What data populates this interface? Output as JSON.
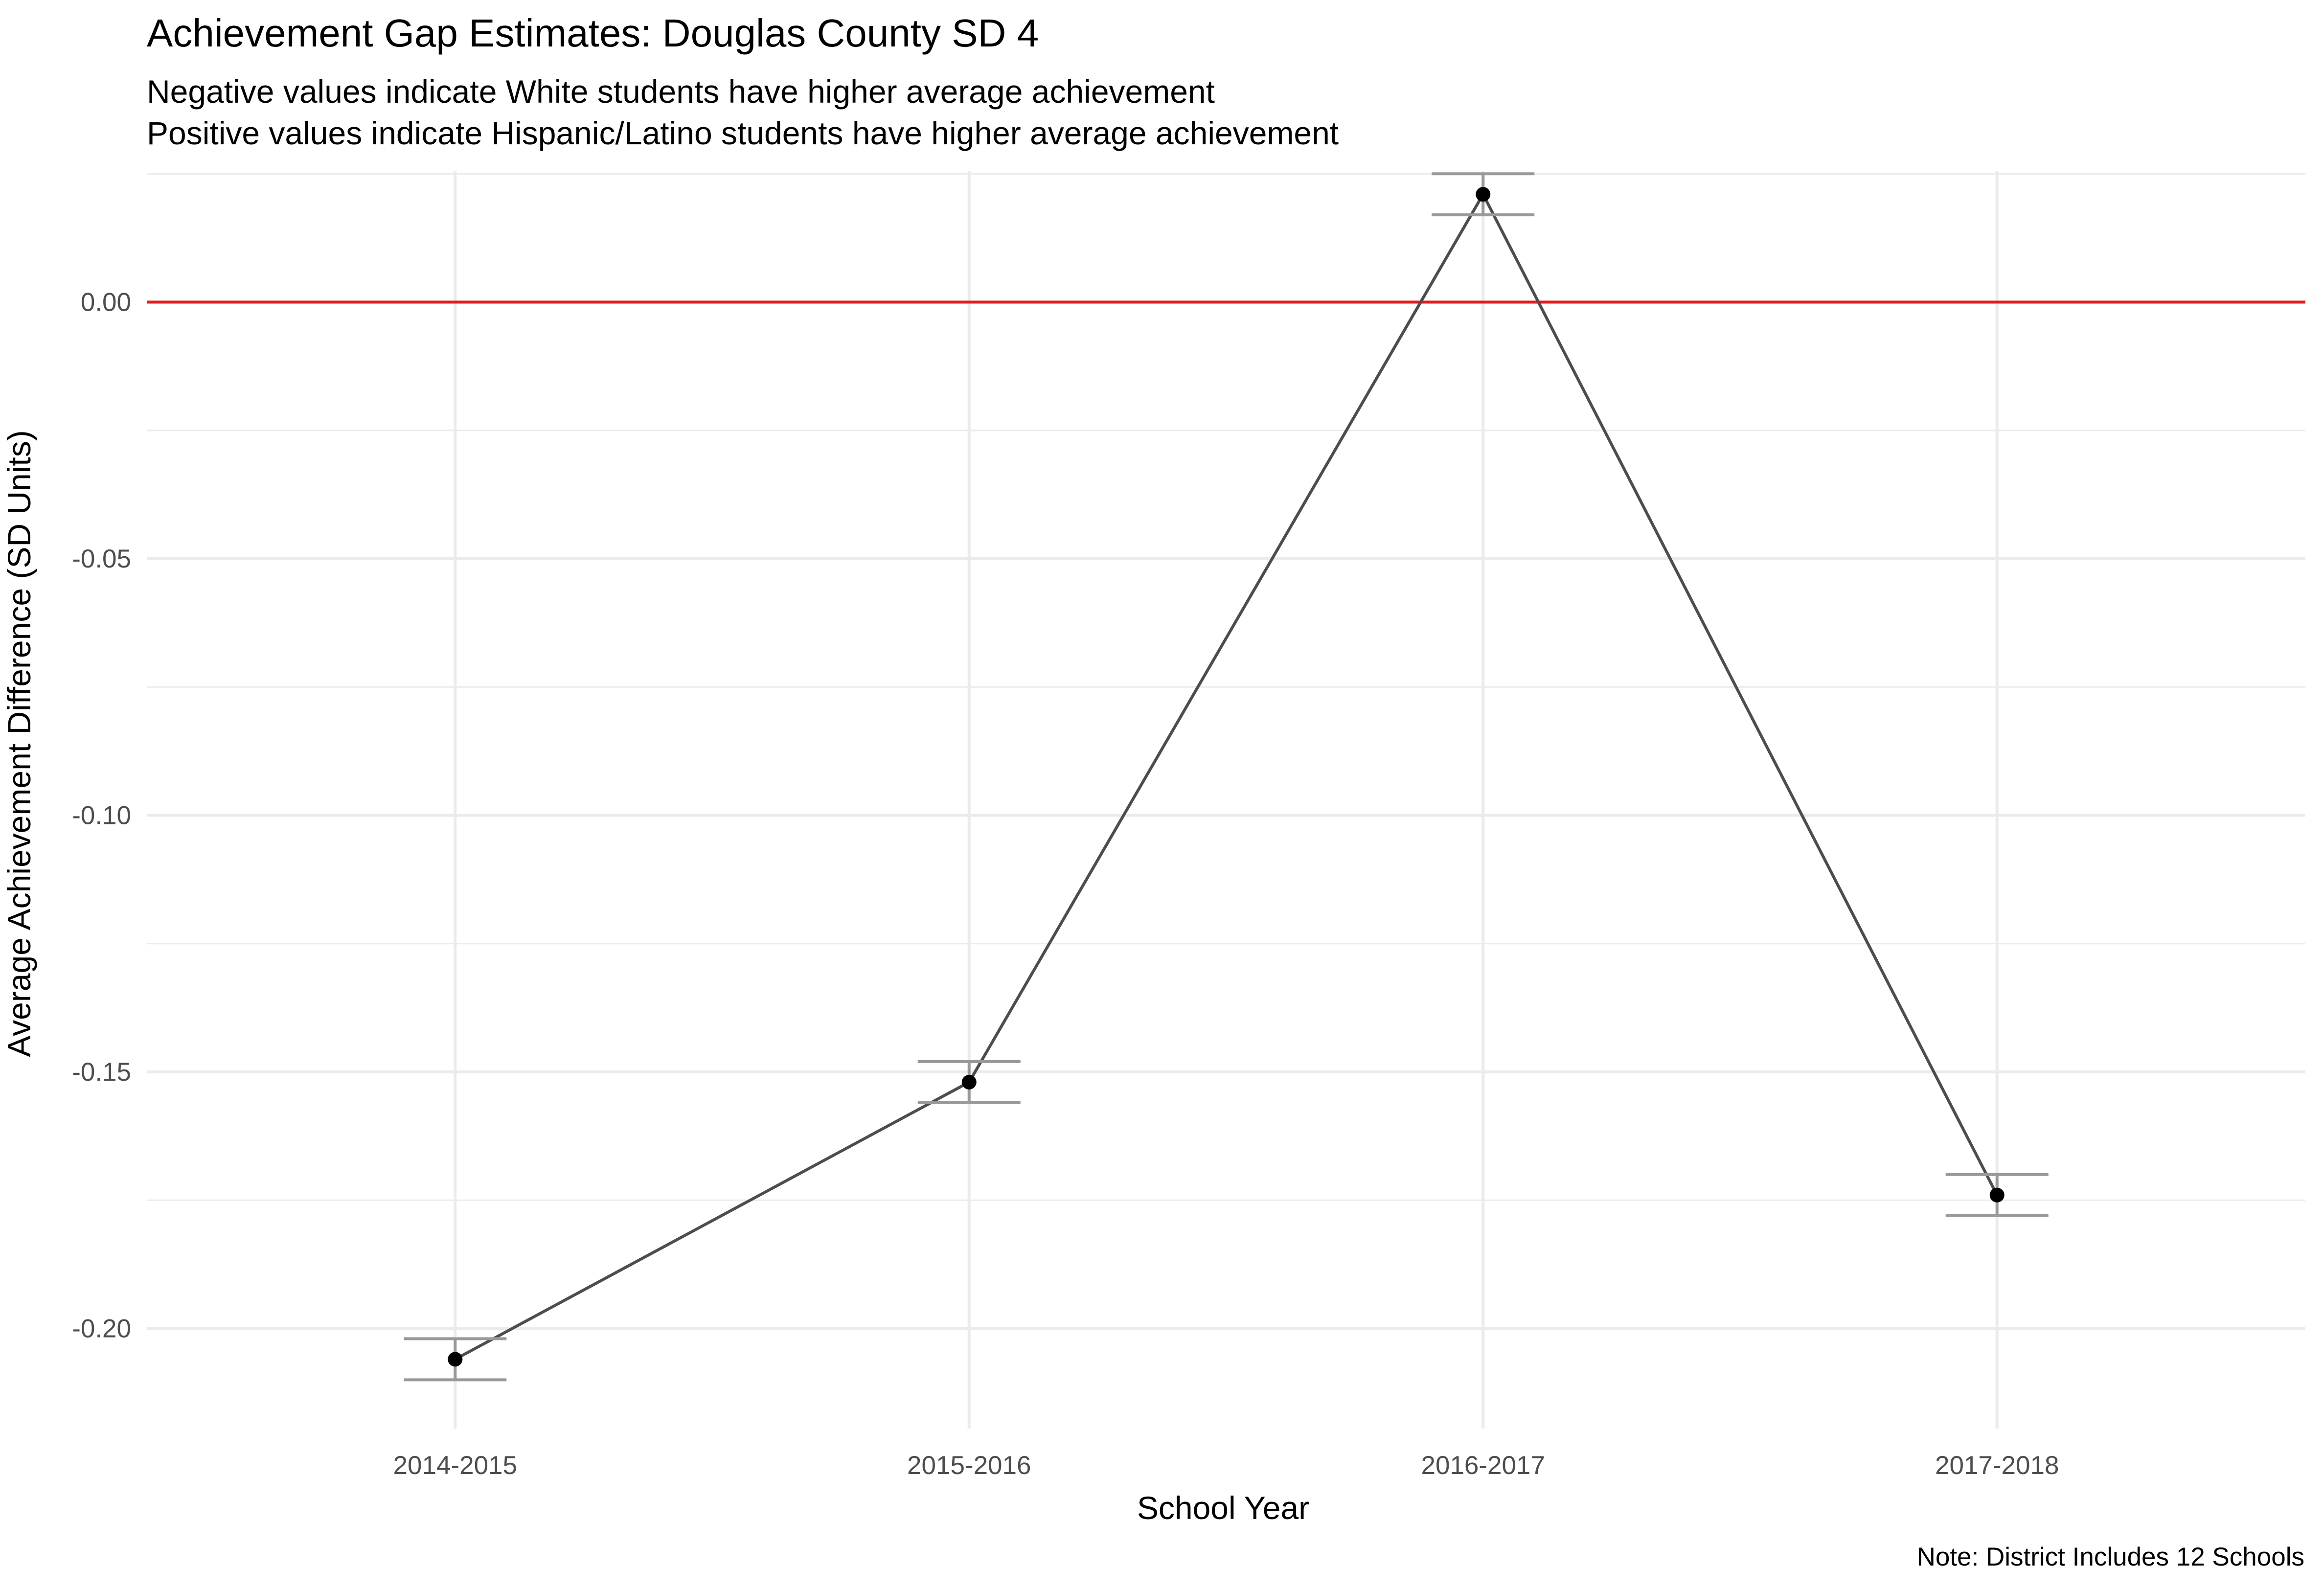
{
  "chart_data": {
    "type": "line",
    "title": "Achievement Gap Estimates: Douglas County SD 4",
    "subtitle_lines": [
      "Negative values indicate White students have higher average achievement",
      "Positive values indicate Hispanic/Latino students have higher average achievement"
    ],
    "xlabel": "School Year",
    "ylabel": "Average Achievement Difference (SD Units)",
    "caption": "Note: District Includes 12 Schools",
    "categories": [
      "2014-2015",
      "2015-2016",
      "2016-2017",
      "2017-2018"
    ],
    "series": [
      {
        "values": [
          -0.206,
          -0.152,
          0.021,
          -0.174
        ],
        "lower": [
          -0.21,
          -0.156,
          0.017,
          -0.178
        ],
        "upper": [
          -0.202,
          -0.148,
          0.025,
          -0.17
        ]
      }
    ],
    "yticks": [
      0.0,
      -0.05,
      -0.1,
      -0.15,
      -0.2
    ],
    "ytick_labels": [
      "0.00",
      "-0.05",
      "-0.10",
      "-0.15",
      "-0.20"
    ],
    "ylim": [
      -0.2195,
      0.0255
    ],
    "reference_line": {
      "y": 0,
      "color": "#e41a1c"
    },
    "grid": true,
    "colors": {
      "line": "#4d4d4d",
      "point": "#000000",
      "errorbar": "#999999",
      "grid": "#ebebeb"
    }
  }
}
